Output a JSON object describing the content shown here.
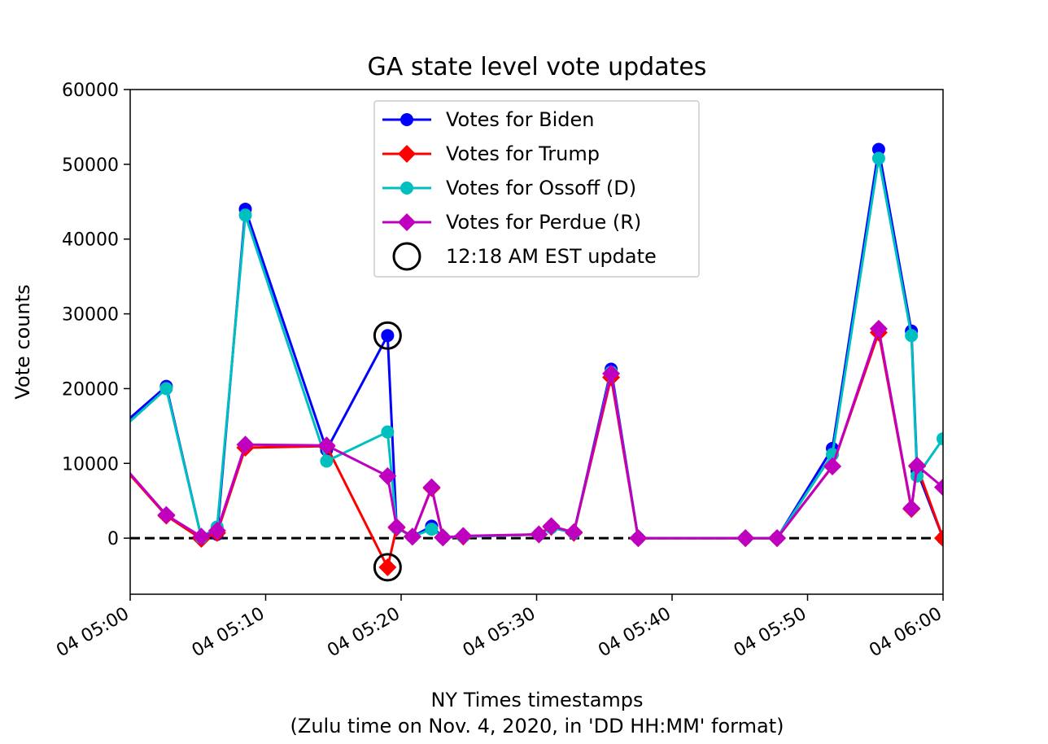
{
  "chart_data": {
    "type": "line",
    "title": "GA state level vote updates",
    "xlabel": "NY Times timestamps",
    "xlabel_line2": "(Zulu time on Nov. 4, 2020, in 'DD HH:MM' format)",
    "ylabel": "Vote counts",
    "xlim": [
      "04 05:00",
      "04 06:00"
    ],
    "ylim": [
      -7500,
      60000
    ],
    "x_ticks": [
      "04 05:00",
      "04 05:10",
      "04 05:20",
      "04 05:30",
      "04 05:40",
      "04 05:50",
      "04 06:00"
    ],
    "y_ticks": [
      0,
      10000,
      20000,
      30000,
      40000,
      50000,
      60000
    ],
    "grid": false,
    "legend_position": "upper-center",
    "reference_line": {
      "y": 0,
      "style": "dashed",
      "color": "#000000"
    },
    "series": [
      {
        "name": "Votes for Biden",
        "color": "#0000ff",
        "marker": "circle",
        "points": [
          {
            "x": "04 04:59:00",
            "y": 14500
          },
          {
            "x": "04 05:02:40",
            "y": 20300
          },
          {
            "x": "04 05:05:15",
            "y": 100
          },
          {
            "x": "04 05:06:25",
            "y": 500
          },
          {
            "x": "04 05:08:30",
            "y": 44000
          },
          {
            "x": "04 05:14:30",
            "y": 11800
          },
          {
            "x": "04 05:19:00",
            "y": 27100
          },
          {
            "x": "04 05:19:40",
            "y": 1400
          },
          {
            "x": "04 05:20:50",
            "y": 200
          },
          {
            "x": "04 05:22:15",
            "y": 1600
          },
          {
            "x": "04 05:23:05",
            "y": 100
          },
          {
            "x": "04 05:24:35",
            "y": 200
          },
          {
            "x": "04 05:30:10",
            "y": 500
          },
          {
            "x": "04 05:31:05",
            "y": 1500
          },
          {
            "x": "04 05:32:45",
            "y": 700
          },
          {
            "x": "04 05:35:30",
            "y": 22600
          },
          {
            "x": "04 05:37:30",
            "y": 0
          },
          {
            "x": "04 05:45:25",
            "y": 0
          },
          {
            "x": "04 05:47:45",
            "y": 0
          },
          {
            "x": "04 05:51:50",
            "y": 12000
          },
          {
            "x": "04 05:55:15",
            "y": 52000
          },
          {
            "x": "04 05:57:40",
            "y": 27700
          },
          {
            "x": "04 05:58:05",
            "y": 9000
          },
          {
            "x": "04 06:00:00",
            "y": 0
          }
        ]
      },
      {
        "name": "Votes for Trump",
        "color": "#ff0000",
        "marker": "diamond",
        "points": [
          {
            "x": "04 04:59:00",
            "y": 10500
          },
          {
            "x": "04 05:02:40",
            "y": 3000
          },
          {
            "x": "04 05:05:15",
            "y": -100
          },
          {
            "x": "04 05:06:25",
            "y": 700
          },
          {
            "x": "04 05:08:30",
            "y": 12100
          },
          {
            "x": "04 05:14:30",
            "y": 12300
          },
          {
            "x": "04 05:19:00",
            "y": -3900
          },
          {
            "x": "04 05:19:40",
            "y": 1400
          },
          {
            "x": "04 05:20:50",
            "y": 200
          },
          {
            "x": "04 05:22:15",
            "y": 6700
          },
          {
            "x": "04 05:23:05",
            "y": 100
          },
          {
            "x": "04 05:24:35",
            "y": 200
          },
          {
            "x": "04 05:30:10",
            "y": 500
          },
          {
            "x": "04 05:31:05",
            "y": 1500
          },
          {
            "x": "04 05:32:45",
            "y": 700
          },
          {
            "x": "04 05:35:30",
            "y": 21500
          },
          {
            "x": "04 05:37:30",
            "y": 0
          },
          {
            "x": "04 05:45:25",
            "y": 0
          },
          {
            "x": "04 05:47:45",
            "y": 0
          },
          {
            "x": "04 05:51:50",
            "y": 9600
          },
          {
            "x": "04 05:55:15",
            "y": 27500
          },
          {
            "x": "04 05:57:40",
            "y": 3900
          },
          {
            "x": "04 05:58:05",
            "y": 9600
          },
          {
            "x": "04 06:00:00",
            "y": 0
          }
        ]
      },
      {
        "name": "Votes for Ossoff (D)",
        "color": "#00bfbf",
        "marker": "circle",
        "points": [
          {
            "x": "04 04:59:00",
            "y": 14000
          },
          {
            "x": "04 05:02:40",
            "y": 20000
          },
          {
            "x": "04 05:05:15",
            "y": 100
          },
          {
            "x": "04 05:06:25",
            "y": 1500
          },
          {
            "x": "04 05:08:30",
            "y": 43200
          },
          {
            "x": "04 05:14:30",
            "y": 10300
          },
          {
            "x": "04 05:19:00",
            "y": 14200
          },
          {
            "x": "04 05:19:40",
            "y": 1400
          },
          {
            "x": "04 05:20:50",
            "y": 200
          },
          {
            "x": "04 05:22:15",
            "y": 1200
          },
          {
            "x": "04 05:23:05",
            "y": 100
          },
          {
            "x": "04 05:24:35",
            "y": 200
          },
          {
            "x": "04 05:30:10",
            "y": 500
          },
          {
            "x": "04 05:31:05",
            "y": 1400
          },
          {
            "x": "04 05:32:45",
            "y": 700
          },
          {
            "x": "04 05:35:30",
            "y": 22200
          },
          {
            "x": "04 05:37:30",
            "y": 0
          },
          {
            "x": "04 05:45:25",
            "y": 0
          },
          {
            "x": "04 05:47:45",
            "y": 0
          },
          {
            "x": "04 05:51:50",
            "y": 11200
          },
          {
            "x": "04 05:55:15",
            "y": 50800
          },
          {
            "x": "04 05:57:40",
            "y": 27100
          },
          {
            "x": "04 05:58:05",
            "y": 8300
          },
          {
            "x": "04 06:00:00",
            "y": 13300
          }
        ]
      },
      {
        "name": "Votes for Perdue (R)",
        "color": "#bf00bf",
        "marker": "diamond",
        "points": [
          {
            "x": "04 04:59:00",
            "y": 10700
          },
          {
            "x": "04 05:02:40",
            "y": 3100
          },
          {
            "x": "04 05:05:15",
            "y": 200
          },
          {
            "x": "04 05:06:25",
            "y": 1000
          },
          {
            "x": "04 05:08:30",
            "y": 12500
          },
          {
            "x": "04 05:14:30",
            "y": 12400
          },
          {
            "x": "04 05:19:00",
            "y": 8300
          },
          {
            "x": "04 05:19:40",
            "y": 1500
          },
          {
            "x": "04 05:20:50",
            "y": 200
          },
          {
            "x": "04 05:22:15",
            "y": 6800
          },
          {
            "x": "04 05:23:05",
            "y": 100
          },
          {
            "x": "04 05:24:35",
            "y": 300
          },
          {
            "x": "04 05:30:10",
            "y": 500
          },
          {
            "x": "04 05:31:05",
            "y": 1600
          },
          {
            "x": "04 05:32:45",
            "y": 800
          },
          {
            "x": "04 05:35:30",
            "y": 22000
          },
          {
            "x": "04 05:37:30",
            "y": 0
          },
          {
            "x": "04 05:45:25",
            "y": 0
          },
          {
            "x": "04 05:47:45",
            "y": 0
          },
          {
            "x": "04 05:51:50",
            "y": 9600
          },
          {
            "x": "04 05:55:15",
            "y": 28000
          },
          {
            "x": "04 05:57:40",
            "y": 4000
          },
          {
            "x": "04 05:58:05",
            "y": 9700
          },
          {
            "x": "04 06:00:00",
            "y": 6800
          }
        ]
      }
    ],
    "highlight": {
      "name": "12:18 AM EST update",
      "marker": "open-circle",
      "color": "#000000",
      "points": [
        {
          "x": "04 05:19:00",
          "y": 27100
        },
        {
          "x": "04 05:19:00",
          "y": -3900
        }
      ]
    }
  }
}
